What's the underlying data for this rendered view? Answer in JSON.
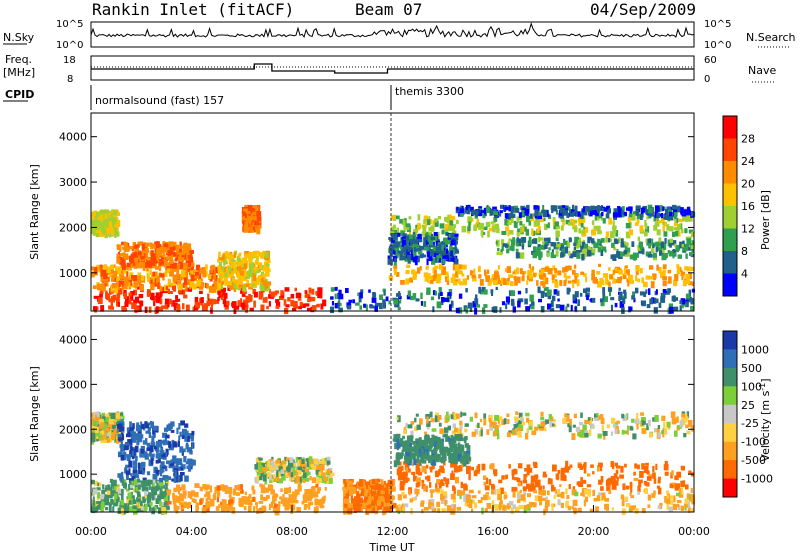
{
  "header": {
    "station": "Rankin Inlet (fitACF)",
    "beam": "Beam 07",
    "date": "04/Sep/2009"
  },
  "top_panel": {
    "nsky_label": "N.Sky",
    "nsearch_label": "N.Search",
    "freq_label_top": "Freq.",
    "freq_label_unit": "[MHz]",
    "nave_label": "Nave",
    "cpid_label": "CPID",
    "left_ticks_noise": [
      "10^5",
      "10^0"
    ],
    "right_ticks_noise": [
      "10^5",
      "10^0"
    ],
    "left_ticks_freq": [
      "18",
      "8"
    ],
    "right_ticks_nave": [
      "60",
      "0"
    ],
    "cpid_segments": [
      {
        "text": "normalsound (fast) 157",
        "start_hour": 0
      },
      {
        "text": "themis 3300",
        "start_hour": 12
      }
    ]
  },
  "power_colorbar": {
    "title": "Power [dB]",
    "ticks": [
      "28",
      "24",
      "20",
      "16",
      "12",
      "8",
      "4"
    ],
    "colors": [
      "#ff0000",
      "#ff4500",
      "#ff8c00",
      "#ffc000",
      "#a0d030",
      "#30a050",
      "#20608a",
      "#0000ff"
    ]
  },
  "velocity_colorbar": {
    "title": "Velocity [m s^-1]",
    "title_main": "Velocity [m s",
    "title_exp": "-1",
    "title_end": "]",
    "ticks": [
      "1000",
      "500",
      "100",
      "25",
      "-25",
      "-100",
      "-500",
      "-1000"
    ],
    "colors": [
      "#1a3aa8",
      "#2f6fb8",
      "#3f8f6a",
      "#7ccf3a",
      "#c8c8c8",
      "#ffd040",
      "#ffa020",
      "#ff6a00",
      "#ff0000"
    ]
  },
  "x_axis": {
    "ticks": [
      "00:00",
      "04:00",
      "08:00",
      "12:00",
      "16:00",
      "20:00",
      "00:00"
    ],
    "label": "Time UT"
  },
  "chart_data": [
    {
      "type": "heatmap",
      "title": "Power",
      "ylabel": "Slant Range [km]",
      "xlabel": "Time UT",
      "xlim_hours": [
        0,
        24
      ],
      "ylim_km": [
        180,
        4500
      ],
      "y_ticks": [
        1000,
        2000,
        3000,
        4000
      ],
      "colorbar_label": "Power [dB]",
      "colorbar_range": [
        0,
        32
      ],
      "regions": [
        {
          "t0": 0.0,
          "t1": 9.3,
          "r0": 200,
          "r1": 700,
          "value": 28
        },
        {
          "t0": 0.0,
          "t1": 5.0,
          "r0": 700,
          "r1": 1200,
          "value": 22
        },
        {
          "t0": 0.0,
          "t1": 1.0,
          "r0": 1900,
          "r1": 2400,
          "value": 16
        },
        {
          "t0": 1.0,
          "t1": 4.0,
          "r0": 1200,
          "r1": 1700,
          "value": 24
        },
        {
          "t0": 5.0,
          "t1": 7.0,
          "r0": 700,
          "r1": 1500,
          "value": 18
        },
        {
          "t0": 6.0,
          "t1": 6.6,
          "r0": 2000,
          "r1": 2500,
          "value": 24
        },
        {
          "t0": 9.5,
          "t1": 24.0,
          "r0": 200,
          "r1": 700,
          "value": 6
        },
        {
          "t0": 11.8,
          "t1": 24.0,
          "r0": 800,
          "r1": 1200,
          "value": 20
        },
        {
          "t0": 11.8,
          "t1": 24.0,
          "r0": 1900,
          "r1": 2300,
          "value": 14
        },
        {
          "t0": 11.8,
          "t1": 14.5,
          "r0": 1300,
          "r1": 1900,
          "value": 6
        },
        {
          "t0": 14.5,
          "t1": 24.0,
          "r0": 2300,
          "r1": 2500,
          "value": 5
        },
        {
          "t0": 16.0,
          "t1": 24.0,
          "r0": 1400,
          "r1": 1800,
          "value": 10
        }
      ]
    },
    {
      "type": "heatmap",
      "title": "Velocity",
      "ylabel": "Slant Range [km]",
      "xlabel": "Time UT",
      "xlim_hours": [
        0,
        24
      ],
      "ylim_km": [
        180,
        4500
      ],
      "y_ticks": [
        1000,
        2000,
        3000,
        4000
      ],
      "colorbar_label": "Velocity [m s^-1]",
      "colorbar_range": [
        -1000,
        1000
      ],
      "regions": [
        {
          "t0": 0.0,
          "t1": 1.2,
          "r0": 1800,
          "r1": 2400,
          "value": 0
        },
        {
          "t0": 1.0,
          "t1": 4.0,
          "r0": 900,
          "r1": 2200,
          "value": 700
        },
        {
          "t0": 0.0,
          "t1": 3.0,
          "r0": 200,
          "r1": 900,
          "value": 100
        },
        {
          "t0": 3.0,
          "t1": 9.3,
          "r0": 200,
          "r1": 800,
          "value": -200
        },
        {
          "t0": 6.5,
          "t1": 9.5,
          "r0": 900,
          "r1": 1400,
          "value": 0
        },
        {
          "t0": 10.0,
          "t1": 12.0,
          "r0": 200,
          "r1": 900,
          "value": -300
        },
        {
          "t0": 12.0,
          "t1": 24.0,
          "r0": 700,
          "r1": 1300,
          "value": -400
        },
        {
          "t0": 12.0,
          "t1": 24.0,
          "r0": 1900,
          "r1": 2400,
          "value": 0
        },
        {
          "t0": 12.0,
          "t1": 24.0,
          "r0": 200,
          "r1": 700,
          "value": -100
        },
        {
          "t0": 12.0,
          "t1": 15.0,
          "r0": 1300,
          "r1": 1900,
          "value": 200
        }
      ]
    }
  ]
}
